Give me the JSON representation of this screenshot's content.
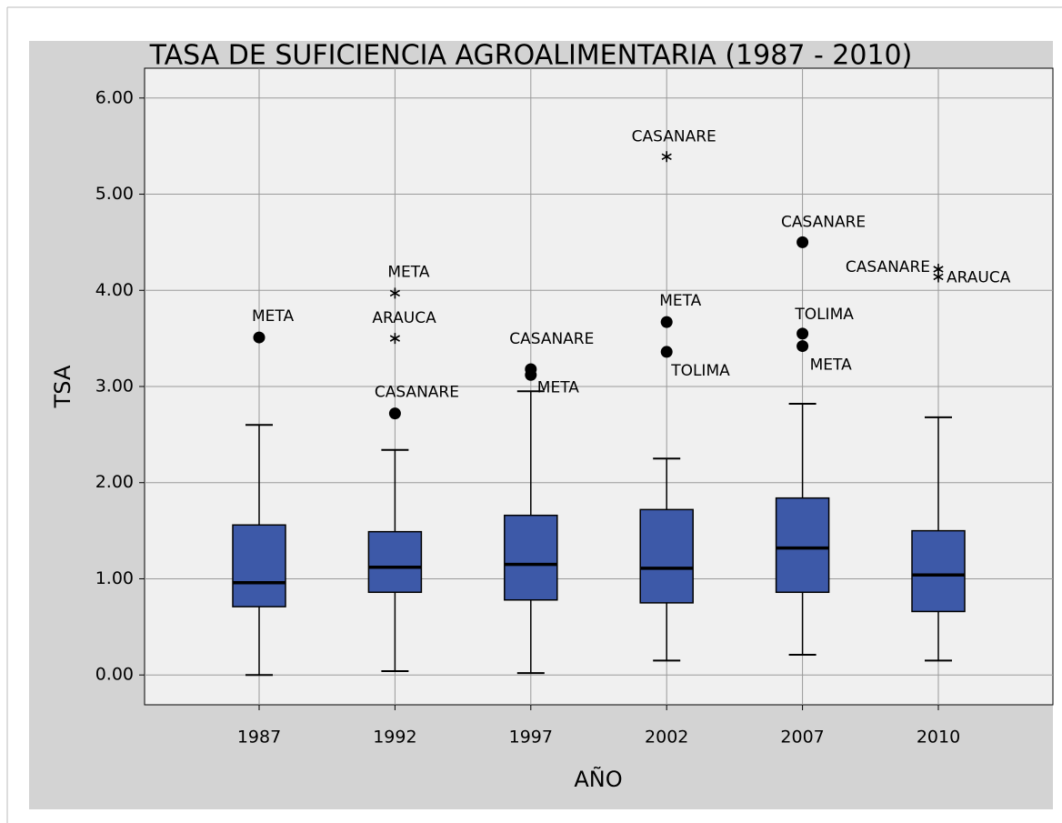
{
  "chart_data": {
    "type": "boxplot",
    "title": "TASA DE SUFICIENCIA AGROALIMENTARIA (1987 - 2010)",
    "x_label": "AÑO",
    "y_label": "TSA",
    "categories": [
      "1987",
      "1992",
      "1997",
      "2002",
      "2007",
      "2010"
    ],
    "color": "#3d59a8",
    "grid": true,
    "ylim": [
      -0.31,
      6.31
    ],
    "yticks": [
      {
        "value": 0,
        "label": "0.00"
      },
      {
        "value": 1,
        "label": "1.00"
      },
      {
        "value": 2,
        "label": "2.00"
      },
      {
        "value": 3,
        "label": "3.00"
      },
      {
        "value": 4,
        "label": "4.00"
      },
      {
        "value": 5,
        "label": "5.00"
      },
      {
        "value": 6,
        "label": "6.00"
      }
    ],
    "boxes": [
      {
        "whisker_low": 0.0,
        "q1": 0.71,
        "median": 0.96,
        "q3": 1.56,
        "whisker_high": 2.6,
        "outliers": [
          {
            "label": "META",
            "value": 3.51,
            "marker": "circle"
          }
        ]
      },
      {
        "whisker_low": 0.04,
        "q1": 0.86,
        "median": 1.12,
        "q3": 1.49,
        "whisker_high": 2.34,
        "outliers": [
          {
            "label": "META",
            "value": 3.97,
            "marker": "star"
          },
          {
            "label": "ARAUCA",
            "value": 3.5,
            "marker": "star"
          },
          {
            "label": "CASANARE",
            "value": 2.72,
            "marker": "circle"
          }
        ]
      },
      {
        "whisker_low": 0.02,
        "q1": 0.78,
        "median": 1.15,
        "q3": 1.66,
        "whisker_high": 2.95,
        "outliers": [
          {
            "label": "CASANARE",
            "value": 3.18,
            "marker": "circle"
          },
          {
            "label": "META",
            "value": 3.12,
            "marker": "circle"
          }
        ]
      },
      {
        "whisker_low": 0.15,
        "q1": 0.75,
        "median": 1.11,
        "q3": 1.72,
        "whisker_high": 2.25,
        "outliers": [
          {
            "label": "CASANARE",
            "value": 5.39,
            "marker": "star"
          },
          {
            "label": "META",
            "value": 3.67,
            "marker": "circle"
          },
          {
            "label": "TOLIMA",
            "value": 3.36,
            "marker": "circle"
          }
        ]
      },
      {
        "whisker_low": 0.21,
        "q1": 0.86,
        "median": 1.32,
        "q3": 1.84,
        "whisker_high": 2.82,
        "outliers": [
          {
            "label": "CASANARE",
            "value": 4.5,
            "marker": "circle"
          },
          {
            "label": "TOLIMA",
            "value": 3.55,
            "marker": "circle"
          },
          {
            "label": "META",
            "value": 3.42,
            "marker": "circle"
          }
        ]
      },
      {
        "whisker_low": 0.15,
        "q1": 0.66,
        "median": 1.04,
        "q3": 1.5,
        "whisker_high": 2.68,
        "outliers": [
          {
            "label": "CASANARE",
            "value": 4.22,
            "marker": "star"
          },
          {
            "label": "ARAUCA",
            "value": 4.14,
            "marker": "star"
          }
        ]
      }
    ]
  }
}
